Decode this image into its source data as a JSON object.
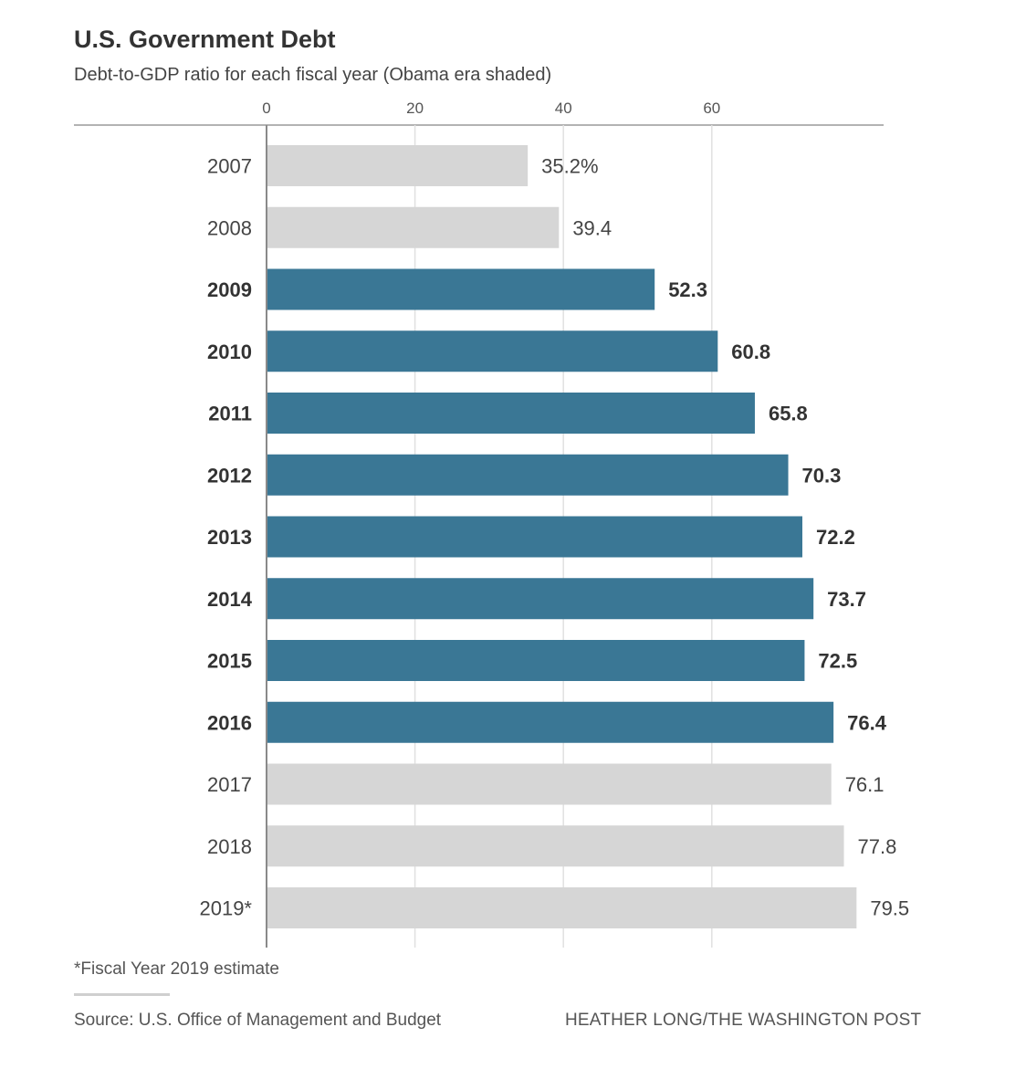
{
  "chart_data": {
    "type": "bar",
    "orientation": "horizontal",
    "title": "U.S. Government Debt",
    "subtitle": "Debt-to-GDP ratio for each fiscal year (Obama era shaded)",
    "categories": [
      "2007",
      "2008",
      "2009",
      "2010",
      "2011",
      "2012",
      "2013",
      "2014",
      "2015",
      "2016",
      "2017",
      "2018",
      "2019*"
    ],
    "values": [
      35.2,
      39.4,
      52.3,
      60.8,
      65.8,
      70.3,
      72.2,
      73.7,
      72.5,
      76.4,
      76.1,
      77.8,
      79.5
    ],
    "value_labels": [
      "35.2%",
      "39.4",
      "52.3",
      "60.8",
      "65.8",
      "70.3",
      "72.2",
      "73.7",
      "72.5",
      "76.4",
      "76.1",
      "77.8",
      "79.5"
    ],
    "highlighted": [
      false,
      false,
      true,
      true,
      true,
      true,
      true,
      true,
      true,
      true,
      false,
      false,
      false
    ],
    "xticks": [
      0,
      20,
      40,
      60
    ],
    "xlim": [
      0,
      80
    ],
    "grid": true,
    "colors": {
      "highlight": "#3a7795",
      "base": "#d6d6d6"
    },
    "footnote": "*Fiscal Year 2019 estimate",
    "source": "Source: U.S. Office of Management and Budget",
    "credit": "HEATHER LONG/THE WASHINGTON POST"
  }
}
